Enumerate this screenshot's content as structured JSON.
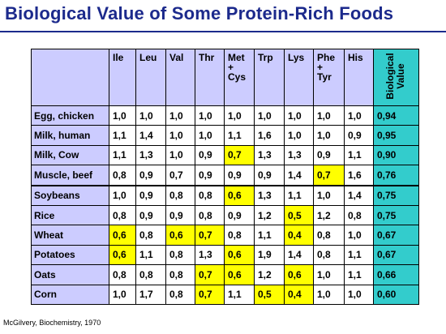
{
  "title": "Biological Value of Some Protein-Rich Foods",
  "source": "McGilvery, Biochemistry, 1970",
  "colors": {
    "header_bg": "#ccccff",
    "bv_bg": "#33cccc",
    "highlight": "#ffff00",
    "title": "#1c2a8c"
  },
  "table": {
    "columns": [
      {
        "lines": [
          "Ile"
        ]
      },
      {
        "lines": [
          "Leu"
        ]
      },
      {
        "lines": [
          "Val"
        ]
      },
      {
        "lines": [
          "Thr"
        ]
      },
      {
        "lines": [
          "Met",
          "+",
          "Cys"
        ]
      },
      {
        "lines": [
          "Trp"
        ]
      },
      {
        "lines": [
          "Lys"
        ]
      },
      {
        "lines": [
          "Phe",
          "+",
          "Tyr"
        ]
      },
      {
        "lines": [
          "His"
        ]
      }
    ],
    "bv_header_lines": [
      "Biological",
      "Value"
    ],
    "rows": [
      {
        "label": "Egg, chicken",
        "values": [
          "1,0",
          "1,0",
          "1,0",
          "1,0",
          "1,0",
          "1,0",
          "1,0",
          "1,0",
          "1,0"
        ],
        "highlight": [],
        "bv": "0,94"
      },
      {
        "label": "Milk, human",
        "values": [
          "1,1",
          "1,4",
          "1,0",
          "1,0",
          "1,1",
          "1,6",
          "1,0",
          "1,0",
          "0,9"
        ],
        "highlight": [],
        "bv": "0,95"
      },
      {
        "label": "Milk, Cow",
        "values": [
          "1,1",
          "1,3",
          "1,0",
          "0,9",
          "0,7",
          "1,3",
          "1,3",
          "0,9",
          "1,1"
        ],
        "highlight": [
          4
        ],
        "bv": "0,90"
      },
      {
        "label": "Muscle, beef",
        "values": [
          "0,8",
          "0,9",
          "0,7",
          "0,9",
          "0,9",
          "0,9",
          "1,4",
          "0,7",
          "1,6"
        ],
        "highlight": [
          7
        ],
        "bv": "0,76"
      },
      {
        "label": "Soybeans",
        "values": [
          "1,0",
          "0,9",
          "0,8",
          "0,8",
          "0,6",
          "1,3",
          "1,1",
          "1,0",
          "1,4"
        ],
        "highlight": [
          4
        ],
        "bv": "0,75"
      },
      {
        "label": "Rice",
        "values": [
          "0,8",
          "0,9",
          "0,9",
          "0,8",
          "0,9",
          "1,2",
          "0,5",
          "1,2",
          "0,8"
        ],
        "highlight": [
          6
        ],
        "bv": "0,75"
      },
      {
        "label": "Wheat",
        "values": [
          "0,6",
          "0,8",
          "0,6",
          "0,7",
          "0,8",
          "1,1",
          "0,4",
          "0,8",
          "1,0"
        ],
        "highlight": [
          0,
          2,
          3,
          6
        ],
        "bv": "0,67"
      },
      {
        "label": "Potatoes",
        "values": [
          "0,6",
          "1,1",
          "0,8",
          "1,3",
          "0,6",
          "1,9",
          "1,4",
          "0,8",
          "1,1"
        ],
        "highlight": [
          0,
          4
        ],
        "bv": "0,67"
      },
      {
        "label": "Oats",
        "values": [
          "0,8",
          "0,8",
          "0,8",
          "0,7",
          "0,6",
          "1,2",
          "0,6",
          "1,0",
          "1,1"
        ],
        "highlight": [
          3,
          4,
          6
        ],
        "bv": "0,66"
      },
      {
        "label": "Corn",
        "values": [
          "1,0",
          "1,7",
          "0,8",
          "0,7",
          "1,1",
          "0,5",
          "0,4",
          "1,0",
          "1,0"
        ],
        "highlight": [
          3,
          5,
          6
        ],
        "bv": "0,60"
      }
    ]
  }
}
